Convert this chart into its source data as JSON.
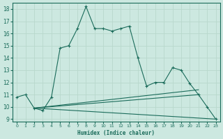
{
  "xlabel": "Humidex (Indice chaleur)",
  "bg_color": "#cce8e0",
  "line_color": "#1a6b5a",
  "grid_color": "#b8d8cc",
  "xlim": [
    -0.5,
    23.5
  ],
  "ylim": [
    8.8,
    18.5
  ],
  "yticks": [
    9,
    10,
    11,
    12,
    13,
    14,
    15,
    16,
    17,
    18
  ],
  "xticks": [
    0,
    1,
    2,
    3,
    4,
    5,
    6,
    7,
    8,
    9,
    10,
    11,
    12,
    13,
    14,
    15,
    16,
    17,
    18,
    19,
    20,
    21,
    22,
    23
  ],
  "series": [
    {
      "x": [
        0,
        1,
        2,
        3,
        4,
        5,
        6,
        7,
        8,
        9,
        10,
        11,
        12,
        13,
        14,
        15,
        16,
        17,
        18,
        19,
        20,
        21,
        22,
        23
      ],
      "y": [
        10.8,
        11.0,
        9.9,
        9.7,
        10.8,
        14.8,
        15.0,
        16.4,
        18.2,
        16.4,
        16.4,
        16.2,
        16.4,
        16.6,
        14.0,
        11.7,
        12.0,
        12.0,
        13.2,
        13.0,
        11.9,
        11.0,
        10.0,
        9.0
      ],
      "marker": true
    },
    {
      "x": [
        2,
        23
      ],
      "y": [
        9.9,
        9.0
      ],
      "marker": false
    },
    {
      "x": [
        2,
        21
      ],
      "y": [
        9.9,
        11.0
      ],
      "marker": false
    },
    {
      "x": [
        2,
        21
      ],
      "y": [
        9.9,
        11.4
      ],
      "marker": false
    }
  ]
}
